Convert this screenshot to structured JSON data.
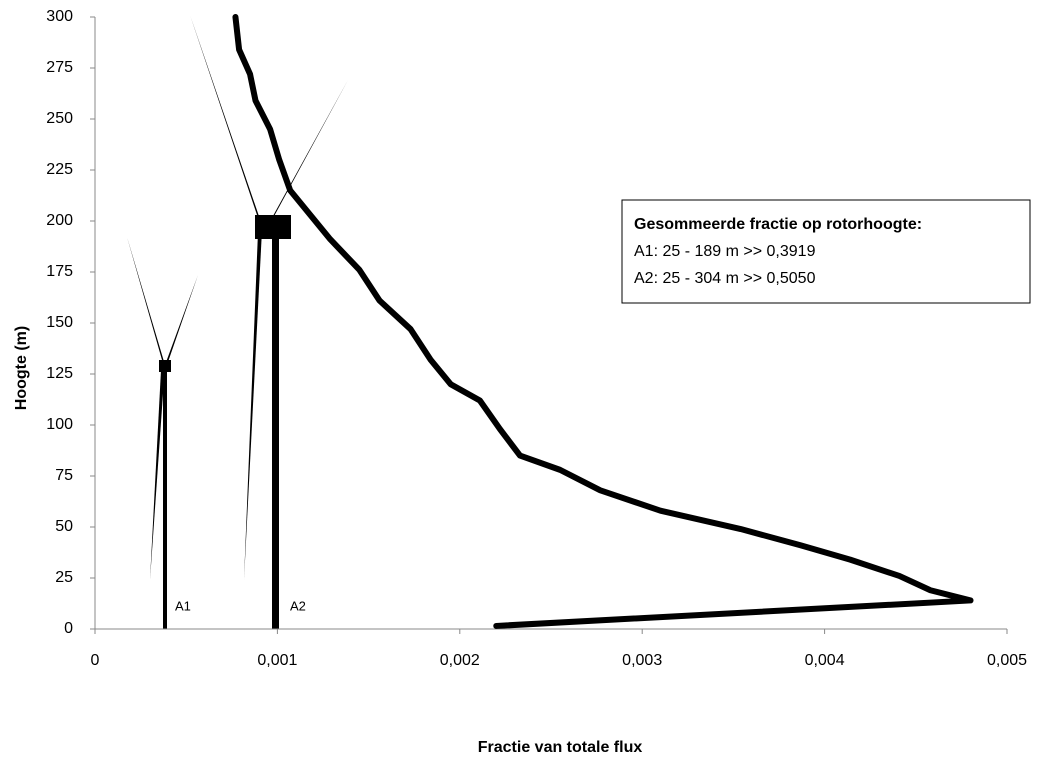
{
  "chart_data": {
    "type": "line",
    "x_label": "Fractie van totale flux",
    "y_label": "Hoogte (m)",
    "xlim": [
      0,
      0.005
    ],
    "ylim": [
      0,
      300
    ],
    "xticks": [
      0,
      {
        "value": 0.001,
        "label": "0,001"
      },
      {
        "value": 0.002,
        "label": "0,002"
      },
      {
        "value": 0.003,
        "label": "0,003"
      },
      {
        "value": 0.004,
        "label": "0,004"
      },
      {
        "value": 0.005,
        "label": "0,005"
      }
    ],
    "yticks": [
      0,
      25,
      50,
      75,
      100,
      125,
      150,
      175,
      200,
      225,
      250,
      275,
      300
    ],
    "series": [
      {
        "color": "#000000",
        "x": [
          0.0022,
          0.0048,
          0.00458,
          0.00441,
          0.00414,
          0.00387,
          0.00354,
          0.0031,
          0.00277,
          0.00255,
          0.00233,
          0.00222,
          0.00211,
          0.00195,
          0.00184,
          0.00173,
          0.00156,
          0.00145,
          0.00129,
          0.00118,
          0.00107,
          0.00101,
          0.00096,
          0.00088,
          0.00085,
          0.00079,
          0.00077
        ],
        "y": [
          1.5,
          14,
          19,
          26,
          34,
          41,
          49,
          58,
          68,
          78,
          85,
          98,
          112,
          120,
          132,
          147,
          161,
          176,
          191,
          203,
          215,
          230,
          245,
          259,
          272,
          284,
          300
        ]
      }
    ],
    "turbine_labels": [
      "A1",
      "A2"
    ],
    "annotation": {
      "title": "Gesommeerde fractie op rotorhoogte:",
      "lines": [
        "A1: 25 - 189 m >> 0,3919",
        "A2: 25 - 304 m >> 0,5050"
      ]
    }
  }
}
